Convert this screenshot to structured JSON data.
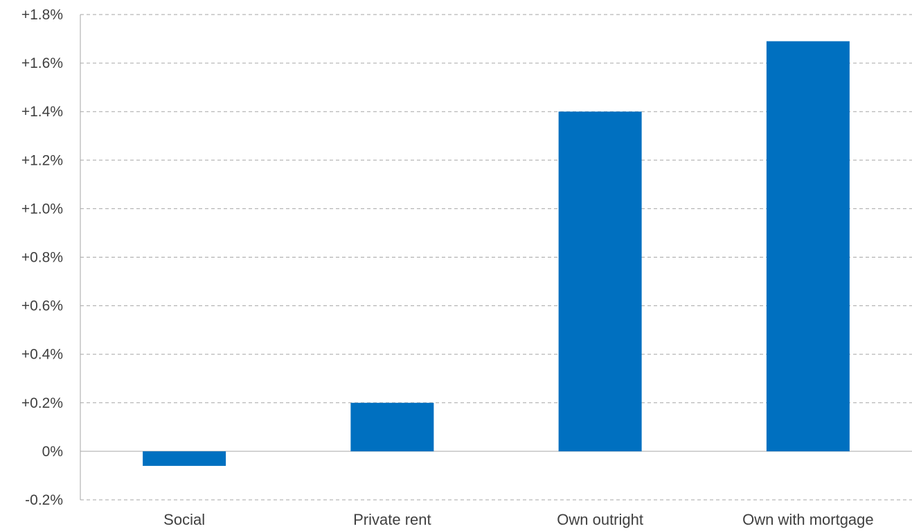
{
  "chart_data": {
    "type": "bar",
    "categories": [
      "Social",
      "Private rent",
      "Own outright",
      "Own with mortgage"
    ],
    "values": [
      -0.06,
      0.2,
      1.4,
      1.69
    ],
    "ylim": [
      -0.2,
      1.8
    ],
    "yticks": [
      -0.2,
      0,
      0.2,
      0.4,
      0.6,
      0.8,
      1.0,
      1.2,
      1.4,
      1.6,
      1.8
    ],
    "ytick_labels": [
      "-0.2%",
      "0%",
      "+0.2%",
      "+0.4%",
      "+0.6%",
      "+0.8%",
      "+1.0%",
      "+1.2%",
      "+1.4%",
      "+1.6%",
      "+1.8%"
    ],
    "grid": true,
    "legend": false,
    "bar_color": "#0070c0",
    "grid_color": "#a6a6a6",
    "text_color": "#404040"
  }
}
